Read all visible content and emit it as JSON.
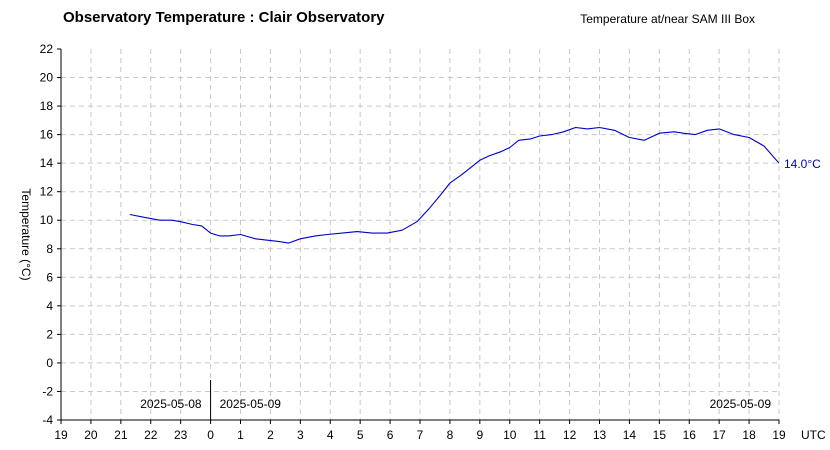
{
  "chart_data": {
    "type": "line",
    "title": "Observatory Temperature : Clair Observatory",
    "subtitle": "Temperature at/near SAM III Box",
    "ylabel": "Temperature (°C)",
    "xlabel": "",
    "x_unit_label": "UTC",
    "ylim": [
      -4,
      22
    ],
    "yticks": [
      -4,
      -2,
      0,
      2,
      4,
      6,
      8,
      10,
      12,
      14,
      16,
      18,
      20,
      22
    ],
    "xlim": [
      0,
      24
    ],
    "x_tick_labels": [
      "19",
      "20",
      "21",
      "22",
      "23",
      "0",
      "1",
      "2",
      "3",
      "4",
      "5",
      "6",
      "7",
      "8",
      "9",
      "10",
      "11",
      "12",
      "13",
      "14",
      "15",
      "16",
      "17",
      "18",
      "19"
    ],
    "grid": true,
    "date_labels": [
      {
        "text": "2025-05-08",
        "position": "left-of-midnight"
      },
      {
        "text": "2025-05-09",
        "position": "right-of-midnight"
      },
      {
        "text": "2025-05-09",
        "position": "right-end"
      }
    ],
    "midnight_hour_offset": 5,
    "current_value_label": "14.0°C",
    "series": [
      {
        "color": "#0000cc",
        "x": [
          2.3,
          2.8,
          3.3,
          3.7,
          4.0,
          4.4,
          4.7,
          5.0,
          5.3,
          5.6,
          6.0,
          6.5,
          6.9,
          7.3,
          7.6,
          8.0,
          8.5,
          8.9,
          9.4,
          9.9,
          10.4,
          10.9,
          11.4,
          11.9,
          12.3,
          12.7,
          13.0,
          13.4,
          13.7,
          14.0,
          14.3,
          14.7,
          15.0,
          15.3,
          15.7,
          16.0,
          16.4,
          16.8,
          17.2,
          17.6,
          18.0,
          18.5,
          19.0,
          19.5,
          20.0,
          20.5,
          20.8,
          21.2,
          21.6,
          22.0,
          22.5,
          23.0,
          23.5,
          24.0
        ],
        "y": [
          10.4,
          10.2,
          10.0,
          10.0,
          9.9,
          9.7,
          9.6,
          9.1,
          8.9,
          8.9,
          9.0,
          8.7,
          8.6,
          8.5,
          8.4,
          8.7,
          8.9,
          9.0,
          9.1,
          9.2,
          9.1,
          9.1,
          9.3,
          9.9,
          10.8,
          11.8,
          12.6,
          13.2,
          13.7,
          14.2,
          14.5,
          14.8,
          15.1,
          15.6,
          15.7,
          15.9,
          16.0,
          16.2,
          16.5,
          16.4,
          16.5,
          16.3,
          15.8,
          15.6,
          16.1,
          16.2,
          16.1,
          16.0,
          16.3,
          16.4,
          16.0,
          15.8,
          15.2,
          14.0
        ]
      }
    ]
  }
}
